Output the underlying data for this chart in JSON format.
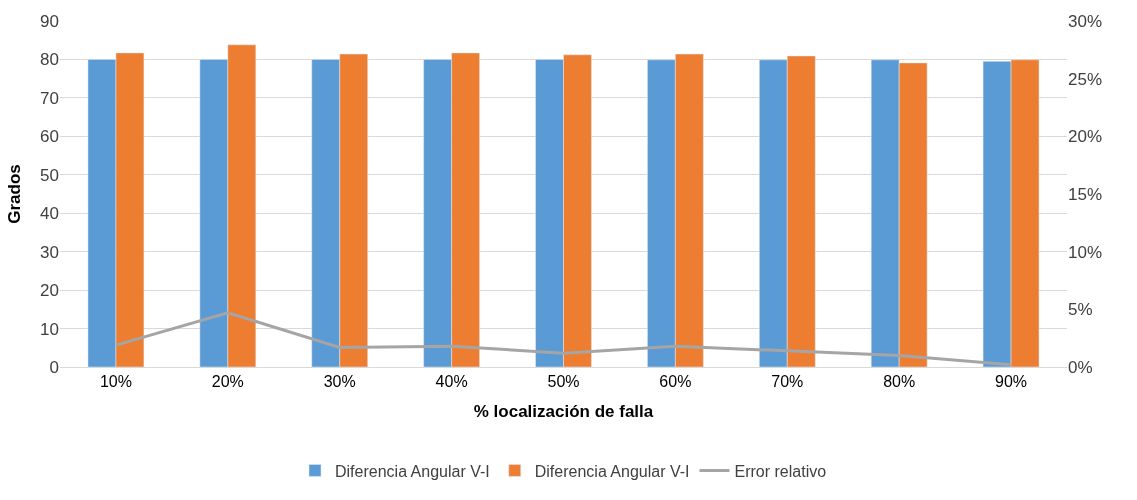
{
  "chart_data": {
    "type": "bar",
    "xlabel": "% localización de falla",
    "ylabel": "Grados",
    "categories": [
      "10%",
      "20%",
      "30%",
      "40%",
      "50%",
      "60%",
      "70%",
      "80%",
      "90%"
    ],
    "series": [
      {
        "name": "Diferencia Angular V-I",
        "color": "#5b9bd5",
        "values": [
          80.0,
          80.0,
          80.0,
          80.0,
          80.0,
          79.9,
          79.9,
          79.9,
          79.5
        ]
      },
      {
        "name": "Diferencia Angular V-I",
        "color": "#ed7d31",
        "values": [
          81.7,
          83.8,
          81.4,
          81.7,
          81.2,
          81.4,
          80.9,
          79.1,
          79.9
        ]
      },
      {
        "name": "Error relativo",
        "type": "line",
        "axis": "y2",
        "color": "#a5a5a5",
        "values": [
          1.9,
          4.7,
          1.7,
          1.8,
          1.2,
          1.8,
          1.4,
          1.0,
          0.2
        ]
      }
    ],
    "ylim": [
      0,
      90
    ],
    "yticks": [
      0,
      10,
      20,
      30,
      40,
      50,
      60,
      70,
      80,
      90
    ],
    "y2lim": [
      0,
      30
    ],
    "y2ticks": [
      {
        "value": 0,
        "label": "0%"
      },
      {
        "value": 5,
        "label": "5%"
      },
      {
        "value": 10,
        "label": "10%"
      },
      {
        "value": 15,
        "label": "15%"
      },
      {
        "value": 20,
        "label": "20%"
      },
      {
        "value": 25,
        "label": "25%"
      },
      {
        "value": 30,
        "label": "30%"
      }
    ],
    "grid": "y",
    "legend": "bottom",
    "marker": "none"
  }
}
